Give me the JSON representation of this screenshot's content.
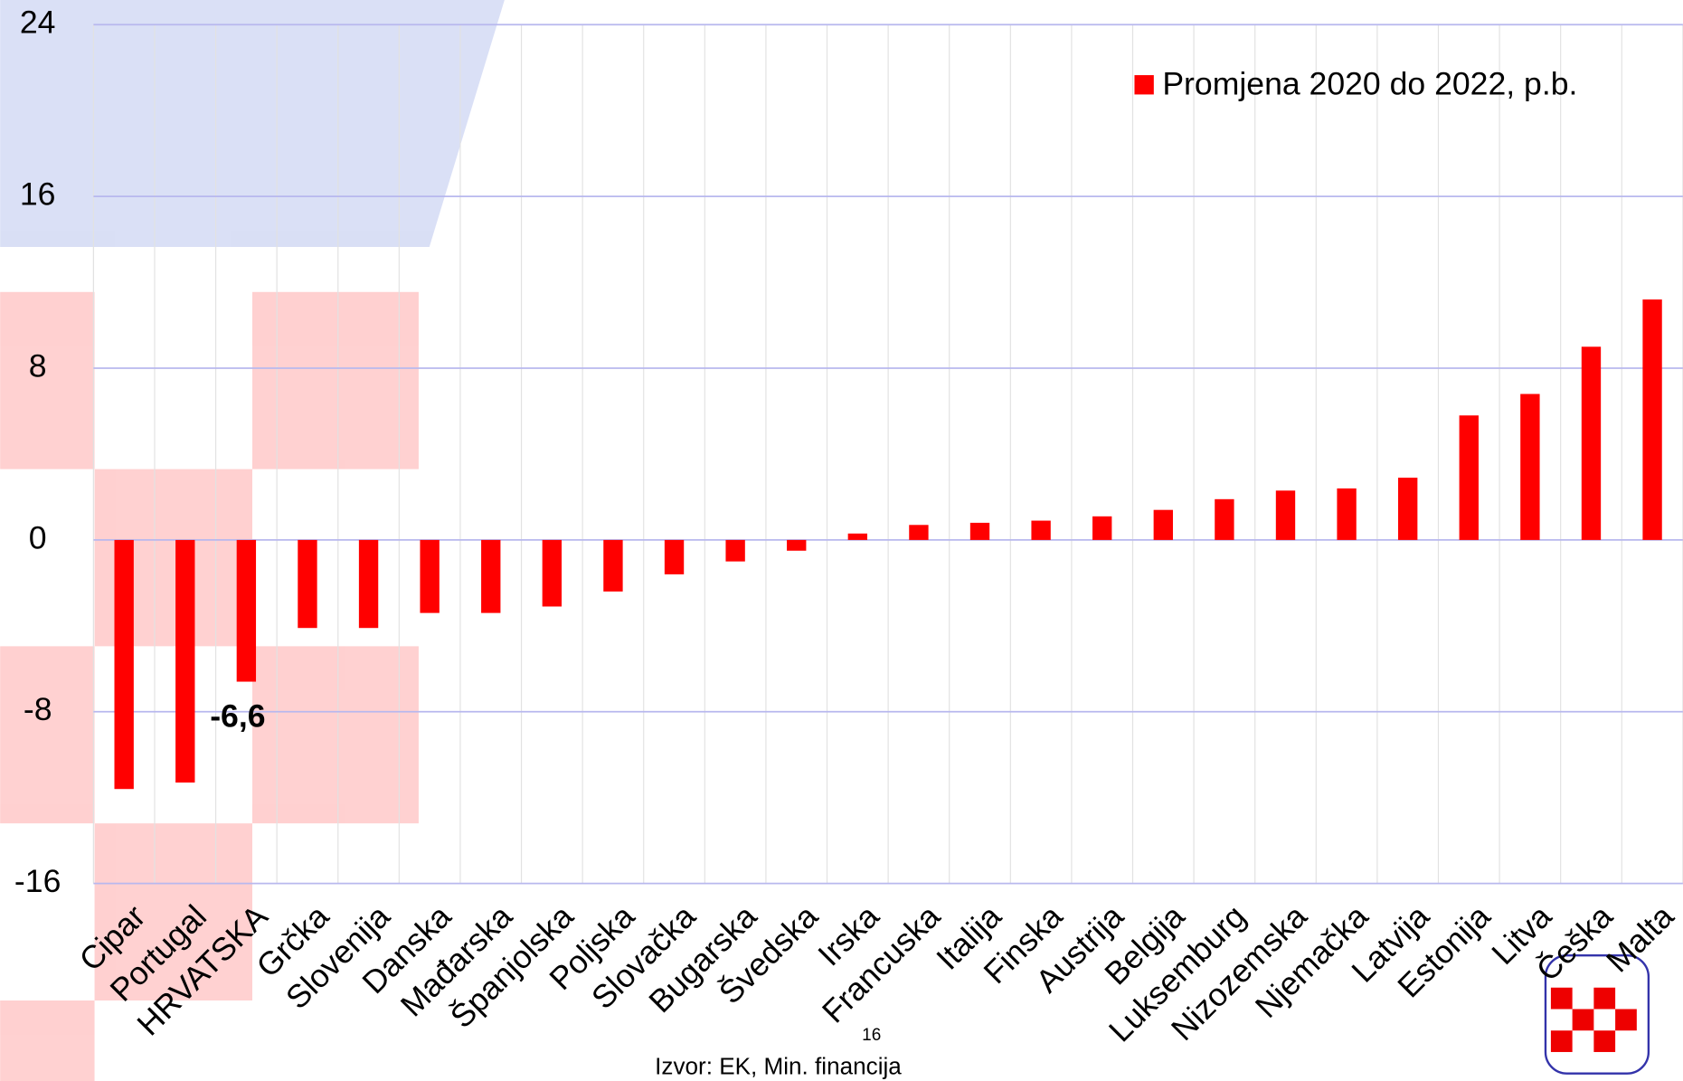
{
  "chart_data": {
    "type": "bar",
    "categories": [
      "Cipar",
      "Portugal",
      "HRVATSKA",
      "Grčka",
      "Slovenija",
      "Danska",
      "Mađarska",
      "Španjolska",
      "Poljska",
      "Slovačka",
      "Bugarska",
      "Švedska",
      "Irska",
      "Francuska",
      "Italija",
      "Finska",
      "Austrija",
      "Belgija",
      "Luksemburg",
      "Nizozemska",
      "Njemačka",
      "Latvija",
      "Estonija",
      "Litva",
      "Češka",
      "Malta"
    ],
    "series": [
      {
        "name": "Promjena 2020 do 2022, p.b.",
        "color": "#ff0000",
        "values": [
          -11.6,
          -11.3,
          -6.6,
          -4.1,
          -4.1,
          -3.4,
          -3.4,
          -3.1,
          -2.4,
          -1.6,
          -1.0,
          -0.5,
          0.3,
          0.7,
          0.8,
          0.9,
          1.1,
          1.4,
          1.9,
          2.3,
          2.4,
          2.9,
          5.8,
          6.8,
          9.0,
          11.2
        ],
        "value_labels": [
          null,
          null,
          "-6,6",
          null,
          null,
          null,
          null,
          null,
          null,
          null,
          null,
          null,
          null,
          null,
          null,
          null,
          null,
          null,
          null,
          null,
          null,
          null,
          null,
          null,
          null,
          null
        ]
      }
    ],
    "ylim": [
      -16,
      24
    ],
    "yticks": [
      -16,
      -8,
      0,
      8,
      16,
      24
    ],
    "grid": true,
    "legend": "top-right",
    "page_number": 16,
    "source": "Izvor: EK, Min. financija"
  }
}
